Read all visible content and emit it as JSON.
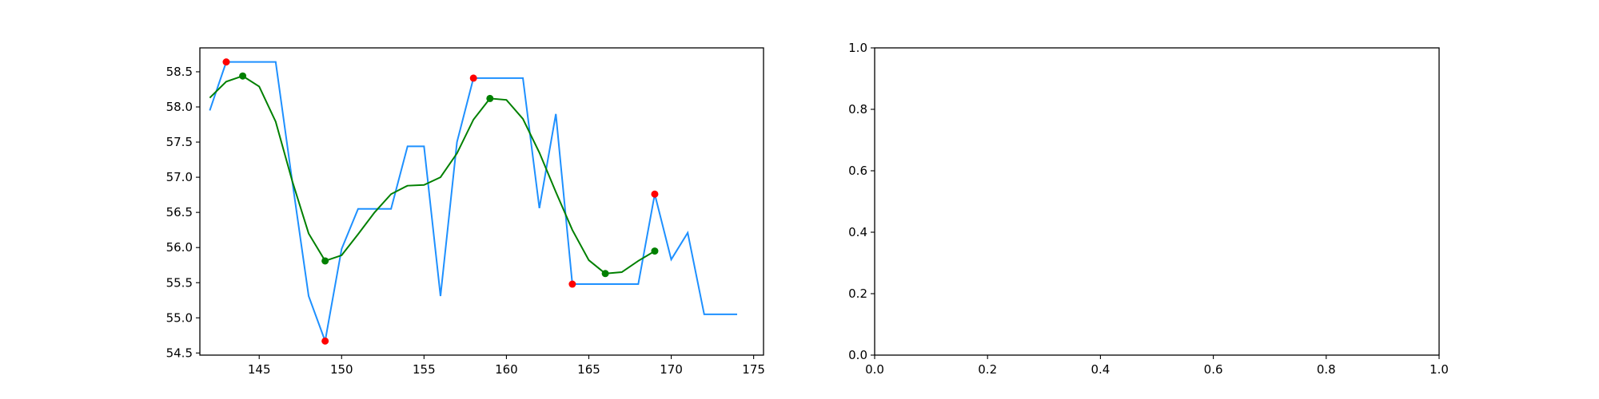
{
  "chart_data": [
    {
      "type": "line",
      "title": "",
      "xlabel": "",
      "ylabel": "",
      "xlim": [
        141.4,
        175.6
      ],
      "ylim": [
        54.47,
        58.84
      ],
      "xticks": [
        145,
        150,
        155,
        160,
        165,
        170,
        175
      ],
      "yticks": [
        54.5,
        55.0,
        55.5,
        56.0,
        56.5,
        57.0,
        57.5,
        58.0,
        58.5
      ],
      "grid": false,
      "series": [
        {
          "color": "#1e90ff",
          "x": [
            142,
            143,
            144,
            145,
            146,
            147,
            148,
            149,
            150,
            151,
            152,
            153,
            154,
            155,
            156,
            157,
            158,
            159,
            160,
            161,
            162,
            163,
            164,
            165,
            166,
            167,
            168,
            169,
            170,
            171,
            172,
            173,
            174
          ],
          "y": [
            57.95,
            58.64,
            58.64,
            58.64,
            58.64,
            56.95,
            55.31,
            54.67,
            55.98,
            56.55,
            56.55,
            56.55,
            57.44,
            57.44,
            55.31,
            57.5,
            58.41,
            58.41,
            58.41,
            58.41,
            56.56,
            57.9,
            55.48,
            55.48,
            55.48,
            55.48,
            55.48,
            56.76,
            55.83,
            56.21,
            55.05,
            55.05,
            55.05
          ]
        },
        {
          "color": "#008000",
          "x": [
            142,
            143,
            144,
            145,
            146,
            147,
            148,
            149,
            150,
            151,
            152,
            153,
            154,
            155,
            156,
            157,
            158,
            159,
            160,
            161,
            162,
            163,
            164,
            165,
            166,
            167,
            168,
            169
          ],
          "y": [
            58.13,
            58.36,
            58.44,
            58.29,
            57.79,
            56.95,
            56.2,
            55.81,
            55.89,
            56.19,
            56.5,
            56.76,
            56.88,
            56.89,
            57.0,
            57.34,
            57.82,
            58.12,
            58.1,
            57.83,
            57.35,
            56.79,
            56.25,
            55.82,
            55.63,
            55.65,
            55.81,
            55.95
          ]
        }
      ],
      "markers": [
        {
          "color": "#ff0000",
          "x": [
            143,
            149,
            158,
            164,
            169
          ],
          "y": [
            58.64,
            54.67,
            58.41,
            55.48,
            56.76
          ]
        },
        {
          "color": "#008000",
          "x": [
            144,
            149,
            159,
            166,
            169
          ],
          "y": [
            58.44,
            55.81,
            58.12,
            55.63,
            55.95
          ]
        }
      ]
    },
    {
      "type": "line",
      "title": "",
      "xlabel": "",
      "ylabel": "",
      "xlim": [
        0.0,
        1.0
      ],
      "ylim": [
        0.0,
        1.0
      ],
      "xticks": [
        0.0,
        0.2,
        0.4,
        0.6,
        0.8,
        1.0
      ],
      "yticks": [
        0.0,
        0.2,
        0.4,
        0.6,
        0.8,
        1.0
      ],
      "grid": false,
      "series": []
    }
  ]
}
